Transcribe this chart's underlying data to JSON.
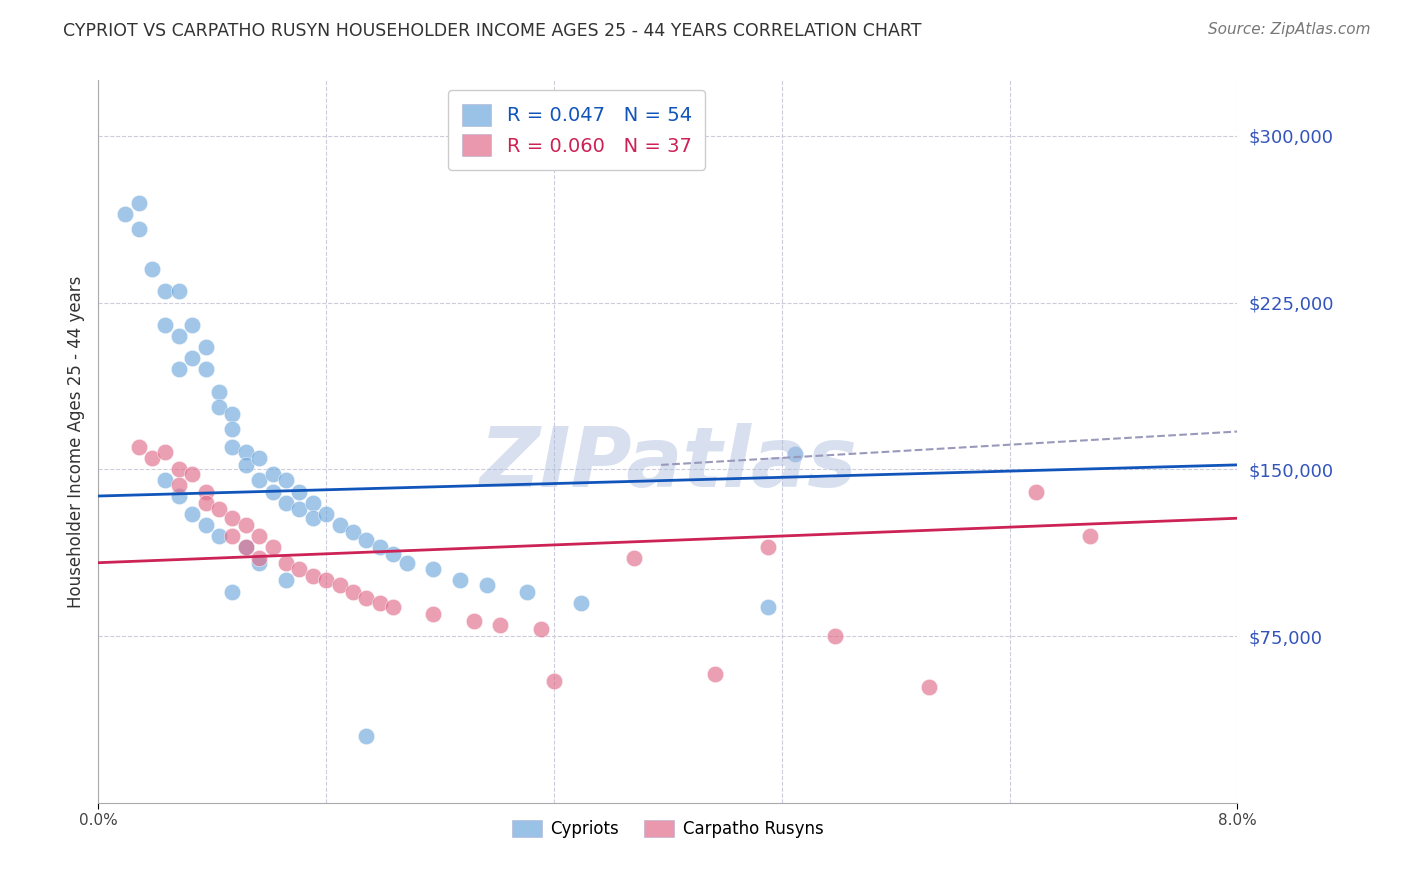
{
  "title": "CYPRIOT VS CARPATHO RUSYN HOUSEHOLDER INCOME AGES 25 - 44 YEARS CORRELATION CHART",
  "source": "Source: ZipAtlas.com",
  "ylabel": "Householder Income Ages 25 - 44 years",
  "ytick_labels": [
    "$75,000",
    "$150,000",
    "$225,000",
    "$300,000"
  ],
  "ytick_values": [
    75000,
    150000,
    225000,
    300000
  ],
  "ymin": 0,
  "ymax": 325000,
  "xmin": 0.0,
  "xmax": 0.085,
  "legend_label_blue": "Cypriots",
  "legend_label_pink": "Carpatho Rusyns",
  "blue_color": "#6FA8DC",
  "pink_color": "#E06C8A",
  "trend_blue_color": "#1155BB",
  "trend_pink_color": "#CC2255",
  "trend_dashed_color": "#9999BB",
  "blue_points_x": [
    0.002,
    0.003,
    0.003,
    0.004,
    0.005,
    0.005,
    0.006,
    0.006,
    0.006,
    0.007,
    0.007,
    0.008,
    0.008,
    0.009,
    0.009,
    0.01,
    0.01,
    0.01,
    0.011,
    0.011,
    0.012,
    0.012,
    0.013,
    0.013,
    0.014,
    0.014,
    0.015,
    0.015,
    0.016,
    0.016,
    0.017,
    0.018,
    0.019,
    0.02,
    0.021,
    0.022,
    0.023,
    0.025,
    0.027,
    0.029,
    0.032,
    0.036,
    0.052,
    0.05,
    0.01,
    0.005,
    0.006,
    0.007,
    0.008,
    0.009,
    0.011,
    0.012,
    0.014,
    0.02
  ],
  "blue_points_y": [
    265000,
    258000,
    270000,
    240000,
    230000,
    215000,
    230000,
    210000,
    195000,
    215000,
    200000,
    205000,
    195000,
    185000,
    178000,
    175000,
    168000,
    160000,
    158000,
    152000,
    155000,
    145000,
    148000,
    140000,
    145000,
    135000,
    140000,
    132000,
    135000,
    128000,
    130000,
    125000,
    122000,
    118000,
    115000,
    112000,
    108000,
    105000,
    100000,
    98000,
    95000,
    90000,
    157000,
    88000,
    95000,
    145000,
    138000,
    130000,
    125000,
    120000,
    115000,
    108000,
    100000,
    30000
  ],
  "pink_points_x": [
    0.003,
    0.004,
    0.005,
    0.006,
    0.006,
    0.007,
    0.008,
    0.008,
    0.009,
    0.01,
    0.01,
    0.011,
    0.011,
    0.012,
    0.012,
    0.013,
    0.014,
    0.015,
    0.016,
    0.017,
    0.018,
    0.019,
    0.02,
    0.021,
    0.022,
    0.025,
    0.028,
    0.03,
    0.033,
    0.034,
    0.04,
    0.046,
    0.05,
    0.055,
    0.062,
    0.07,
    0.074
  ],
  "pink_points_y": [
    160000,
    155000,
    158000,
    150000,
    143000,
    148000,
    140000,
    135000,
    132000,
    128000,
    120000,
    125000,
    115000,
    120000,
    110000,
    115000,
    108000,
    105000,
    102000,
    100000,
    98000,
    95000,
    92000,
    90000,
    88000,
    85000,
    82000,
    80000,
    78000,
    55000,
    110000,
    58000,
    115000,
    75000,
    52000,
    140000,
    120000
  ],
  "blue_trend_x": [
    0.0,
    0.085
  ],
  "blue_trend_y": [
    138000,
    152000
  ],
  "pink_trend_x": [
    0.0,
    0.085
  ],
  "pink_trend_y": [
    108000,
    128000
  ],
  "dashed_trend_x": [
    0.042,
    0.085
  ],
  "dashed_trend_y": [
    152000,
    167000
  ],
  "watermark": "ZIPatlas",
  "watermark_color": "#AABBDD",
  "background_color": "#FFFFFF",
  "grid_color": "#CCCCDD",
  "title_color": "#333333",
  "ytick_color": "#3355BB"
}
